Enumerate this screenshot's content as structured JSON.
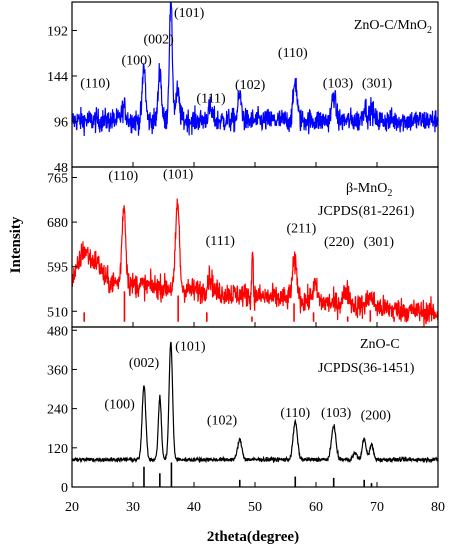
{
  "chart_data": {
    "type": "line",
    "xlabel": "2theta(degree)",
    "ylabel": "Intensity",
    "xlim": [
      20,
      80
    ],
    "xticks": [
      "20",
      "30",
      "40",
      "50",
      "60",
      "70",
      "80"
    ],
    "panels": [
      {
        "name": "ZnO-C/MnO2",
        "label_parts": [
          "ZnO-C/MnO",
          "2"
        ],
        "color": "#0000ff",
        "ylim": [
          48,
          222
        ],
        "yticks": [
          48,
          96,
          144,
          192
        ],
        "baseline": 97,
        "noise": 7,
        "peaks": [
          {
            "x": 28.5,
            "h": 14,
            "w": 0.35
          },
          {
            "x": 31.8,
            "h": 58,
            "w": 0.25
          },
          {
            "x": 34.4,
            "h": 55,
            "w": 0.25
          },
          {
            "x": 36.2,
            "h": 122,
            "w": 0.25
          },
          {
            "x": 37.3,
            "h": 30,
            "w": 0.3
          },
          {
            "x": 42.6,
            "h": 12,
            "w": 0.35
          },
          {
            "x": 47.5,
            "h": 26,
            "w": 0.3
          },
          {
            "x": 56.6,
            "h": 42,
            "w": 0.3
          },
          {
            "x": 62.9,
            "h": 28,
            "w": 0.3
          },
          {
            "x": 68.0,
            "h": 15,
            "w": 0.3
          },
          {
            "x": 69.1,
            "h": 12,
            "w": 0.3
          }
        ],
        "peak_labels": [
          {
            "text": "(110)",
            "x": 23.8,
            "y": 132
          },
          {
            "text": "(100)",
            "x": 30.6,
            "y": 156
          },
          {
            "text": "(002)",
            "x": 34.2,
            "y": 178
          },
          {
            "text": "(101)",
            "x": 39.2,
            "y": 206
          },
          {
            "text": "(111)",
            "x": 42.8,
            "y": 116
          },
          {
            "text": "(102)",
            "x": 49.2,
            "y": 130
          },
          {
            "text": "(110)",
            "x": 56.2,
            "y": 164
          },
          {
            "text": "(103)",
            "x": 63.6,
            "y": 132
          },
          {
            "text": "(301)",
            "x": 70.0,
            "y": 132
          }
        ]
      },
      {
        "name": "β-MnO2",
        "label_parts": [
          "β-MnO",
          "2"
        ],
        "reference": "JCPDS(81-2261)",
        "color": "#ff0000",
        "ylim": [
          480,
          785
        ],
        "yticks": [
          510,
          595,
          680,
          765
        ],
        "baseline": 572,
        "noise": 13,
        "slope": -1.1,
        "peaks": [
          {
            "x": 22.0,
            "h": 55,
            "w": 0.8
          },
          {
            "x": 24.0,
            "h": 35,
            "w": 0.8
          },
          {
            "x": 28.5,
            "h": 150,
            "w": 0.3
          },
          {
            "x": 37.3,
            "h": 165,
            "w": 0.3
          },
          {
            "x": 42.6,
            "h": 28,
            "w": 0.4
          },
          {
            "x": 49.6,
            "h": 95,
            "w": 0.1
          },
          {
            "x": 56.5,
            "h": 70,
            "w": 0.4
          },
          {
            "x": 59.8,
            "h": 30,
            "w": 0.4
          },
          {
            "x": 65.0,
            "h": 25,
            "w": 0.5
          },
          {
            "x": 68.9,
            "h": 20,
            "w": 0.5
          }
        ],
        "sticks_baseline": 490,
        "sticks": [
          {
            "x": 22.0,
            "top": 508
          },
          {
            "x": 28.6,
            "top": 548
          },
          {
            "x": 37.4,
            "top": 540
          },
          {
            "x": 42.1,
            "top": 508
          },
          {
            "x": 49.5,
            "top": 500
          },
          {
            "x": 56.4,
            "top": 525
          },
          {
            "x": 59.6,
            "top": 508
          },
          {
            "x": 65.2,
            "top": 500
          },
          {
            "x": 68.9,
            "top": 512
          },
          {
            "x": 72.8,
            "top": 500
          }
        ],
        "peak_labels": [
          {
            "text": "(110)",
            "x": 28.4,
            "y": 760
          },
          {
            "text": "(101)",
            "x": 37.4,
            "y": 763
          },
          {
            "text": "(111)",
            "x": 44.3,
            "y": 636
          },
          {
            "text": "(211)",
            "x": 57.6,
            "y": 660
          },
          {
            "text": "(220)",
            "x": 63.8,
            "y": 634
          },
          {
            "text": "(301)",
            "x": 70.3,
            "y": 634
          }
        ]
      },
      {
        "name": "ZnO-C",
        "reference": "JCPDS(36-1451)",
        "color": "#000000",
        "ylim": [
          0,
          490
        ],
        "yticks": [
          0,
          120,
          240,
          360,
          480
        ],
        "baseline": 84,
        "noise": 4,
        "peaks": [
          {
            "x": 31.8,
            "h": 225,
            "w": 0.3
          },
          {
            "x": 34.4,
            "h": 190,
            "w": 0.25
          },
          {
            "x": 36.2,
            "h": 360,
            "w": 0.28
          },
          {
            "x": 47.5,
            "h": 60,
            "w": 0.35
          },
          {
            "x": 56.6,
            "h": 115,
            "w": 0.35
          },
          {
            "x": 62.9,
            "h": 105,
            "w": 0.35
          },
          {
            "x": 66.4,
            "h": 20,
            "w": 0.3
          },
          {
            "x": 67.9,
            "h": 65,
            "w": 0.3
          },
          {
            "x": 69.1,
            "h": 45,
            "w": 0.3
          }
        ],
        "sticks_baseline": 0,
        "sticks": [
          {
            "x": 31.8,
            "top": 62
          },
          {
            "x": 34.4,
            "top": 42
          },
          {
            "x": 36.3,
            "top": 75
          },
          {
            "x": 47.5,
            "top": 22
          },
          {
            "x": 56.6,
            "top": 32
          },
          {
            "x": 62.9,
            "top": 28
          },
          {
            "x": 67.9,
            "top": 22
          },
          {
            "x": 69.1,
            "top": 12
          }
        ],
        "peak_labels": [
          {
            "text": "(100)",
            "x": 27.8,
            "y": 240
          },
          {
            "text": "(002)",
            "x": 31.8,
            "y": 367
          },
          {
            "text": "(101)",
            "x": 39.4,
            "y": 418
          },
          {
            "text": "(102)",
            "x": 44.6,
            "y": 191
          },
          {
            "text": "(110)",
            "x": 56.6,
            "y": 215
          },
          {
            "text": "(103)",
            "x": 63.3,
            "y": 215
          },
          {
            "text": "(200)",
            "x": 69.8,
            "y": 207
          }
        ]
      }
    ]
  }
}
